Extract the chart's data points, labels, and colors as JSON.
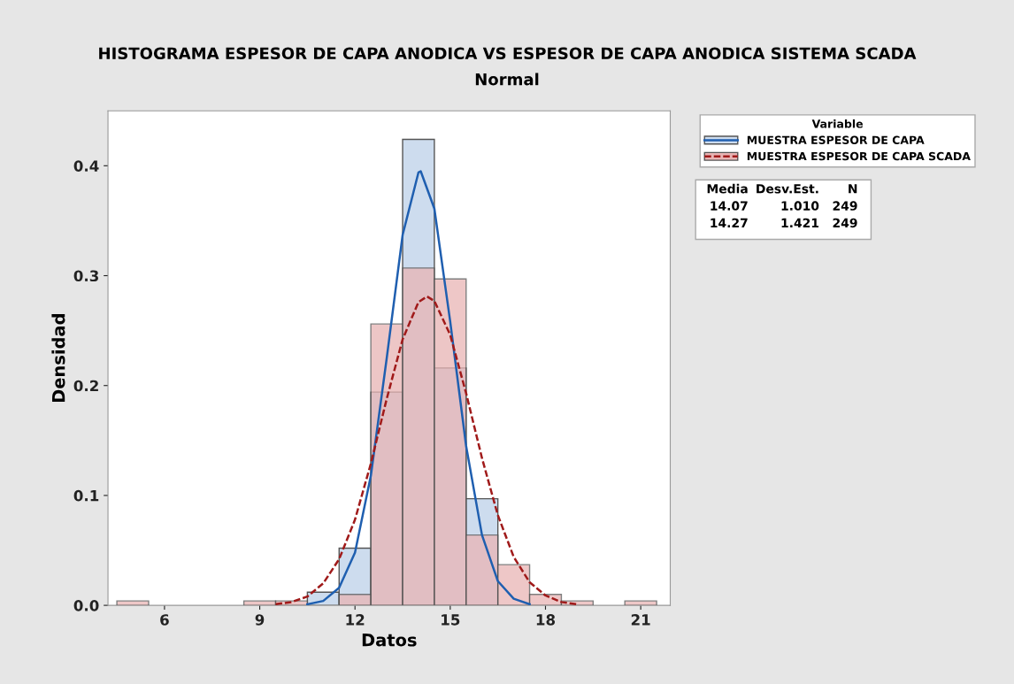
{
  "chart_data": {
    "type": "histogram",
    "title": "HISTOGRAMA ESPESOR DE CAPA ANODICA VS ESPESOR DE CAPA ANODICA SISTEMA SCADA",
    "subtitle": "Normal",
    "xlabel": "Datos",
    "ylabel": "Densidad",
    "legend_title": "Variable",
    "bins": [
      4.5,
      5.5,
      6.5,
      7.5,
      8.5,
      9.5,
      10.5,
      11.5,
      12.5,
      13.5,
      14.5,
      15.5,
      16.5,
      17.5,
      18.5,
      19.5,
      20.5,
      21.5
    ],
    "series": [
      {
        "name": "MUESTRA ESPESOR DE CAPA",
        "color": "#cddcee",
        "values": [
          0,
          0,
          0,
          0,
          0,
          0,
          0.012,
          0.052,
          0.194,
          0.424,
          0.216,
          0.097,
          0,
          0,
          0,
          0,
          0
        ]
      },
      {
        "name": "MUESTRA ESPESOR DE CAPA SCADA",
        "color": "#e8b4b4",
        "values": [
          0.004,
          0,
          0,
          0,
          0.004,
          0.004,
          0,
          0.01,
          0.256,
          0.307,
          0.297,
          0.064,
          0.037,
          0.01,
          0.004,
          0,
          0.004
        ]
      },
      {
        "type": "line",
        "color": "#1f5fb0",
        "line_style": "solid",
        "x": [
          10.5,
          11.0,
          11.5,
          12.0,
          12.5,
          13.0,
          13.5,
          14.0,
          14.07,
          14.5,
          15.0,
          15.5,
          16.0,
          16.5,
          17.0,
          17.5
        ],
        "values": [
          0.001,
          0.004,
          0.016,
          0.048,
          0.118,
          0.225,
          0.337,
          0.394,
          0.395,
          0.361,
          0.258,
          0.145,
          0.064,
          0.022,
          0.006,
          0.001
        ]
      },
      {
        "type": "line",
        "color": "#a01a1a",
        "line_style": "dashed",
        "x": [
          9.5,
          10.0,
          10.5,
          11.0,
          11.5,
          12.0,
          12.5,
          13.0,
          13.5,
          14.0,
          14.27,
          14.5,
          15.0,
          15.5,
          16.0,
          16.5,
          17.0,
          17.5,
          18.0,
          18.5,
          19.0
        ],
        "values": [
          0.001,
          0.003,
          0.008,
          0.02,
          0.042,
          0.078,
          0.129,
          0.188,
          0.242,
          0.276,
          0.281,
          0.277,
          0.246,
          0.193,
          0.134,
          0.082,
          0.044,
          0.021,
          0.009,
          0.003,
          0.001
        ]
      }
    ],
    "xlim": [
      4.22,
      21.93
    ],
    "xticks": [
      6,
      9,
      12,
      15,
      18,
      21
    ],
    "ylim": [
      0,
      0.45
    ],
    "yticks": [
      {
        "value": 0,
        "label": "0.0"
      },
      0.1,
      0.2,
      0.3,
      0.4
    ],
    "grid": false,
    "legend": "top right",
    "annotations": [
      "Media Desv.Est. N",
      "14.07 1.010 249",
      "14.27 1.421 249"
    ]
  }
}
